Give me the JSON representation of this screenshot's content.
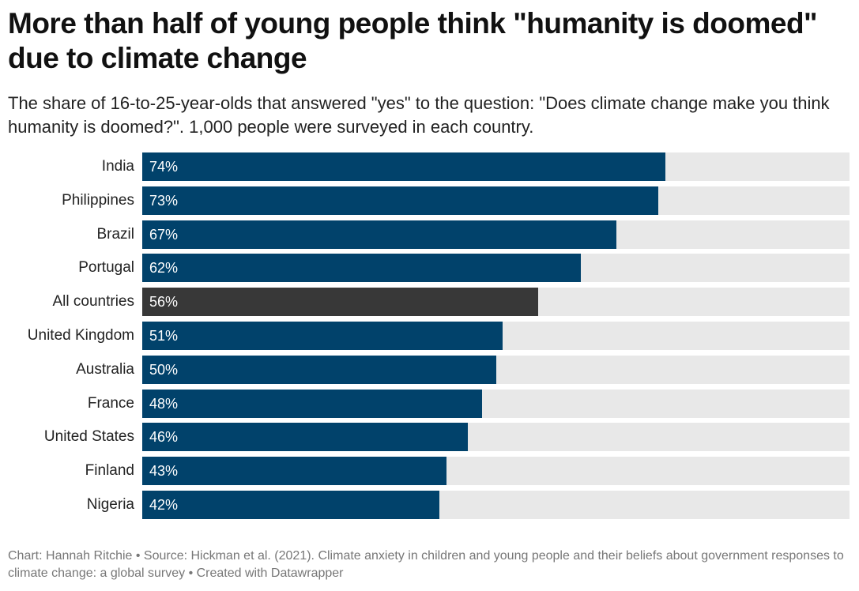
{
  "title": "More than half of young people think \"humanity is doomed\" due to climate change",
  "subtitle": "The share of 16-to-25-year-olds that answered \"yes\" to the question: \"Does climate change make you think humanity is doomed?\". 1,000 people were surveyed in each country.",
  "footer": "Chart: Hannah Ritchie • Source: Hickman et al. (2021). Climate anxiety in children and young people and their beliefs about government responses to climate change: a global survey • Created with Datawrapper",
  "colors": {
    "bar": "#01426b",
    "highlight": "#383838",
    "track": "#e8e8e8"
  },
  "chart_data": {
    "type": "bar",
    "orientation": "horizontal",
    "categories": [
      "India",
      "Philippines",
      "Brazil",
      "Portugal",
      "All countries",
      "United Kingdom",
      "Australia",
      "France",
      "United States",
      "Finland",
      "Nigeria"
    ],
    "values": [
      74,
      73,
      67,
      62,
      56,
      51,
      50,
      48,
      46,
      43,
      42
    ],
    "value_labels": [
      "74%",
      "73%",
      "67%",
      "62%",
      "56%",
      "51%",
      "50%",
      "48%",
      "46%",
      "43%",
      "42%"
    ],
    "highlighted": [
      "All countries"
    ],
    "xlim": [
      0,
      100
    ],
    "unit": "%"
  }
}
